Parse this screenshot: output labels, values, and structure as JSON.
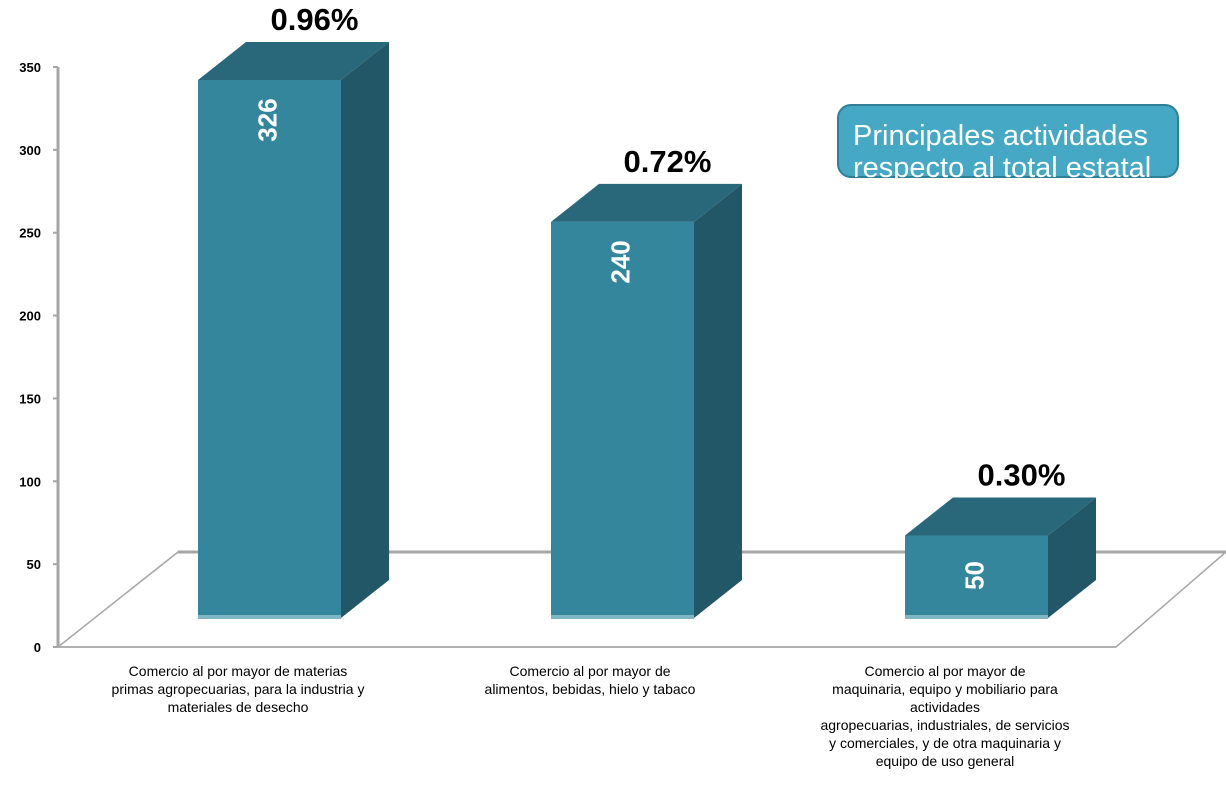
{
  "chart_data": {
    "type": "bar",
    "categories": [
      "Comercio al por mayor de materias primas agropecuarias, para la industria y materiales de desecho",
      "Comercio al por mayor de alimentos, bebidas, hielo y tabaco",
      "Comercio al por mayor de maquinaria, equipo y mobiliario para actividades agropecuarias, industriales, de servicios y comerciales, y de otra maquinaria  y equipo de uso general"
    ],
    "category_lines": [
      [
        "Comercio al por mayor de materias",
        "primas agropecuarias, para la industria y",
        "materiales de desecho"
      ],
      [
        "Comercio al por mayor de",
        "alimentos, bebidas, hielo y tabaco"
      ],
      [
        "Comercio al por mayor de",
        "maquinaria, equipo y mobiliario para",
        "actividades",
        "agropecuarias, industriales, de servicios",
        "y comerciales, y de otra maquinaria  y",
        "equipo de uso general"
      ]
    ],
    "values": [
      326,
      240,
      50
    ],
    "value_labels": [
      "326",
      "240",
      "50"
    ],
    "percent_labels": [
      "0.96%",
      "0.72%",
      "0.30%"
    ],
    "ylim": [
      0,
      350
    ],
    "yticks": [
      0,
      50,
      100,
      150,
      200,
      250,
      300,
      350
    ],
    "legend": "none",
    "grid": false,
    "colors": {
      "front": "#33869c",
      "side": "#225767",
      "top": "#29687a",
      "axis": "#a6a6a6"
    }
  },
  "callout": {
    "lines": [
      "Principales actividades",
      "respecto al total estatal"
    ]
  }
}
